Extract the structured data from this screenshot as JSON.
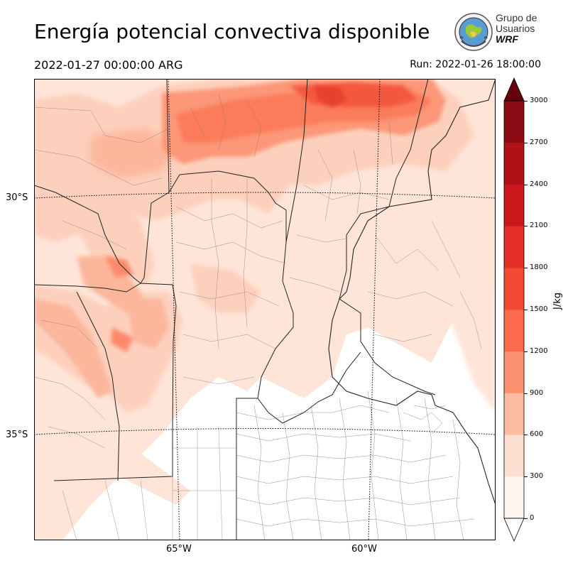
{
  "title": "Energía potencial convectiva disponible",
  "valid_time": "2022-01-27 00:00:00 ARG",
  "run_label": "Run: 2022-01-26 18:00:00",
  "logo": {
    "line1": "Grupo de",
    "line2": "Usuarios",
    "line3": "WRF"
  },
  "map": {
    "latitude_labels": [
      "30°S",
      "35°S"
    ],
    "longitude_labels": [
      "65°W",
      "60°W"
    ]
  },
  "colorbar": {
    "unit": "J/kg",
    "ticks": [
      "0",
      "300",
      "600",
      "900",
      "1200",
      "1500",
      "1800",
      "2100",
      "2400",
      "2700",
      "3000"
    ],
    "colors": [
      "#fff5f0",
      "#fee0d2",
      "#fcbba1",
      "#fc9272",
      "#fb6a4a",
      "#f34a36",
      "#e32f27",
      "#ca181d",
      "#af1117",
      "#8b0a13",
      "#67000d"
    ]
  }
}
